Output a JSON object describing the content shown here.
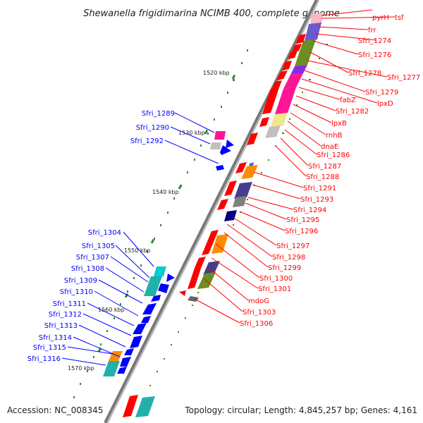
{
  "title": "Shewanella frigidimarina NCIMB 400, complete genome",
  "footer": {
    "accession": "Accession: NC_008345",
    "summary": "Topology: circular; Length: 4,845,257 bp; Genes: 4,161"
  },
  "colors": {
    "forward_label": "#ff0000",
    "reverse_label": "#0000ff",
    "backbone": "#888888",
    "tick": "#2e8b2e"
  },
  "scale_labels": [
    "1520 kbp",
    "1530 kbp",
    "1540 kbp",
    "1550 kbp",
    "1560 kbp",
    "1570 kbp"
  ],
  "right_labels": [
    "pyrH",
    "tsf",
    "frr",
    "Sfri_1274",
    "Sfri_1276",
    "Sfri_1278",
    "Sfri_1277",
    "Sfri_1279",
    "lpxD",
    "fabZ",
    "Sfri_1282",
    "lpxB",
    "rnhB",
    "dnaE",
    "Sfri_1286",
    "Sfri_1287",
    "Sfri_1288",
    "Sfri_1291",
    "Sfri_1293",
    "Sfri_1294",
    "Sfri_1295",
    "Sfri_1296",
    "Sfri_1297",
    "Sfri_1298",
    "Sfri_1299",
    "Sfri_1300",
    "Sfri_1301",
    "mdoG",
    "Sfri_1303",
    "Sfri_1306"
  ],
  "left_labels": [
    "Sfri_1289",
    "Sfri_1290",
    "Sfri_1292",
    "Sfri_1304",
    "Sfri_1305",
    "Sfri_1307",
    "Sfri_1308",
    "Sfri_1309",
    "Sfri_1310",
    "Sfri_1311",
    "Sfri_1312",
    "Sfri_1313",
    "Sfri_1314",
    "Sfri_1315",
    "Sfri_1316"
  ]
}
